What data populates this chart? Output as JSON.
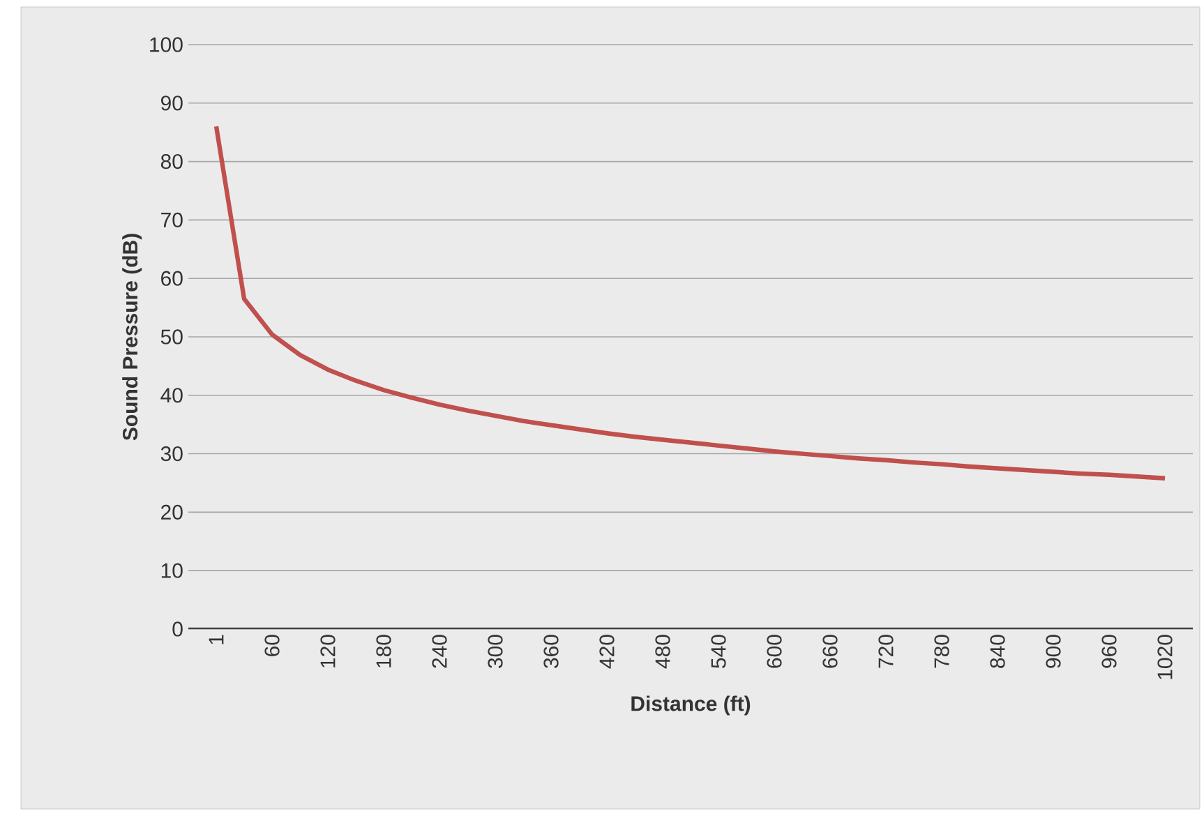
{
  "chart_data": {
    "type": "line",
    "xlabel": "Distance (ft)",
    "ylabel": "Sound Pressure (dB)",
    "categories": [
      "1",
      null,
      "60",
      null,
      "120",
      null,
      "180",
      null,
      "240",
      null,
      "300",
      null,
      "360",
      null,
      "420",
      null,
      "480",
      null,
      "540",
      null,
      "600",
      null,
      "660",
      null,
      "720",
      null,
      "780",
      null,
      "840",
      null,
      "900",
      null,
      "960",
      null,
      "1020"
    ],
    "series": [
      {
        "color": "#c0504d",
        "values": [
          86,
          56.5,
          50.4,
          46.9,
          44.4,
          42.5,
          40.9,
          39.6,
          38.4,
          37.4,
          36.5,
          35.6,
          34.9,
          34.2,
          33.5,
          32.9,
          32.4,
          31.9,
          31.4,
          30.9,
          30.4,
          30.0,
          29.6,
          29.2,
          28.9,
          28.5,
          28.2,
          27.8,
          27.5,
          27.2,
          26.9,
          26.6,
          26.4,
          26.1,
          25.8
        ]
      }
    ],
    "ylim": [
      0,
      100
    ],
    "yticks": [
      0,
      10,
      20,
      30,
      40,
      50,
      60,
      70,
      80,
      90,
      100
    ],
    "grid": "y"
  }
}
